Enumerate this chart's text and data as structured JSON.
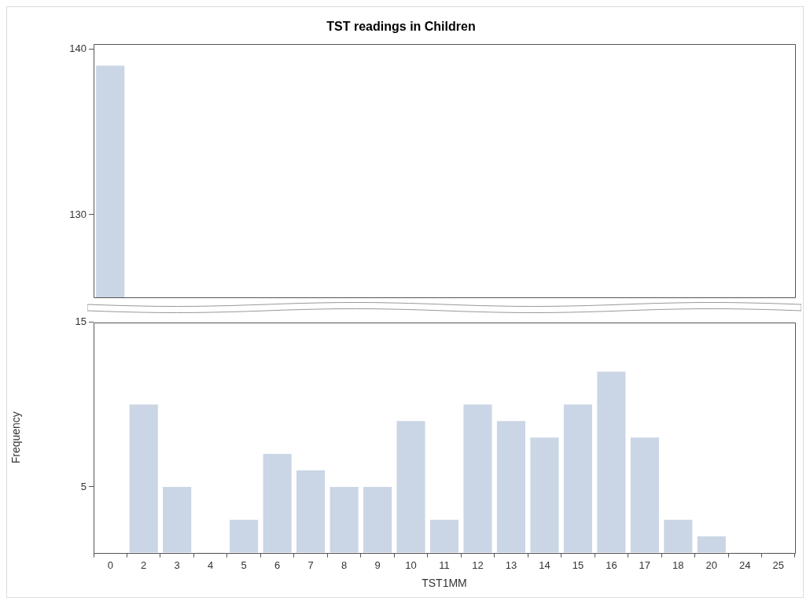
{
  "chart_data": [
    {
      "type": "bar",
      "title": "TST readings in Children",
      "categories": [
        "0",
        "2",
        "3",
        "4",
        "5",
        "6",
        "7",
        "8",
        "9",
        "10",
        "11",
        "12",
        "13",
        "14",
        "15",
        "16",
        "17",
        "18",
        "20",
        "24",
        "25"
      ],
      "values": [
        139,
        null,
        null,
        null,
        null,
        null,
        null,
        null,
        null,
        null,
        null,
        null,
        null,
        null,
        null,
        null,
        null,
        null,
        null,
        null,
        null
      ],
      "color": "#cad5e5",
      "ylim": [
        125,
        140.3
      ],
      "yticks": [
        130,
        140
      ],
      "tick_labels": "y",
      "grid": false
    },
    {
      "type": "bar",
      "xlabel": "TST1MM",
      "ylabel": "Frequency",
      "categories": [
        "0",
        "2",
        "3",
        "4",
        "5",
        "6",
        "7",
        "8",
        "9",
        "10",
        "11",
        "12",
        "13",
        "14",
        "15",
        "16",
        "17",
        "18",
        "20",
        "24",
        "25"
      ],
      "values": [
        null,
        10,
        5,
        1,
        3,
        7,
        6,
        5,
        5,
        9,
        3,
        10,
        9,
        8,
        10,
        12,
        8,
        3,
        2,
        1,
        1
      ],
      "color": "#cad5e5",
      "ylim": [
        1,
        15
      ],
      "yticks": [
        5,
        15
      ],
      "grid": false
    }
  ]
}
